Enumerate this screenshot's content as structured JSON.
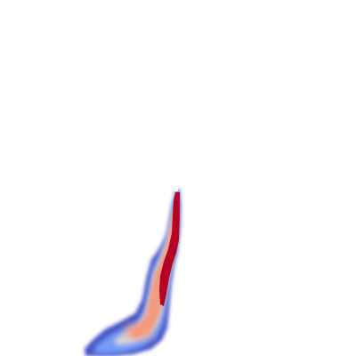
{
  "image": {
    "subject": "density-plume",
    "colormap": "coolwarm",
    "background": "#ffffff",
    "colors": {
      "low": "#3b4cc0",
      "low_mid": "#7b9ff9",
      "mid": "#dddcdc",
      "high_mid": "#f4987a",
      "high": "#b40426"
    }
  }
}
